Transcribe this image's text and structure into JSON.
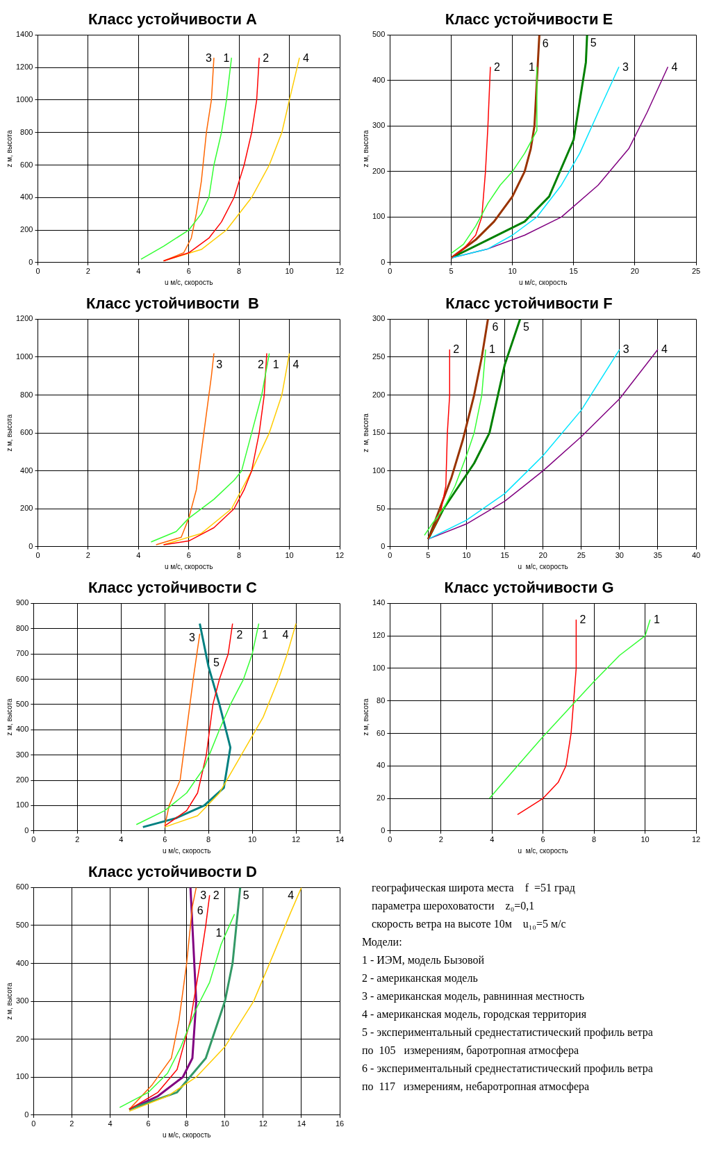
{
  "chart_data": [
    {
      "type": "line",
      "title": "Класс устойчивости A",
      "xlabel": "u м/с, скорость",
      "ylabel": "z м, высота",
      "xlim": [
        0,
        12
      ],
      "xticks": [
        0,
        2,
        4,
        6,
        8,
        10,
        12
      ],
      "ylim": [
        0,
        1400
      ],
      "yticks": [
        0,
        200,
        400,
        600,
        800,
        1000,
        1200,
        1400
      ],
      "grid": true,
      "marker": "none",
      "series": [
        {
          "name": "1",
          "color": "#33ff33",
          "x": [
            4.1,
            5,
            6,
            6.5,
            6.8,
            7,
            7.3,
            7.5,
            7.7
          ],
          "values": [
            20,
            100,
            200,
            300,
            400,
            600,
            800,
            1000,
            1260
          ]
        },
        {
          "name": "2",
          "color": "#ff0000",
          "x": [
            5,
            6,
            6.8,
            7.3,
            7.8,
            8.2,
            8.5,
            8.7,
            8.8
          ],
          "values": [
            10,
            60,
            150,
            250,
            400,
            600,
            800,
            1000,
            1260
          ]
        },
        {
          "name": "3",
          "color": "#ff6600",
          "x": [
            5,
            5.8,
            6.1,
            6.3,
            6.5,
            6.7,
            6.9,
            7
          ],
          "values": [
            10,
            60,
            150,
            300,
            500,
            800,
            1000,
            1260
          ]
        },
        {
          "name": "4",
          "color": "#ffcc00",
          "x": [
            5,
            6.5,
            7.5,
            8.5,
            9.2,
            9.7,
            10,
            10.4
          ],
          "values": [
            10,
            80,
            200,
            400,
            600,
            800,
            1000,
            1260
          ]
        }
      ]
    },
    {
      "type": "line",
      "title": "Класс устойчивости E",
      "xlabel": "u м/с, скорость",
      "ylabel": "z м, высота",
      "xlim": [
        0,
        25
      ],
      "xticks": [
        0,
        5,
        10,
        15,
        20,
        25
      ],
      "ylim": [
        0,
        500
      ],
      "yticks": [
        0,
        100,
        200,
        300,
        400,
        500
      ],
      "grid": true,
      "marker": "none",
      "series": [
        {
          "name": "1",
          "color": "#33ff33",
          "x": [
            5,
            6,
            7,
            8,
            9,
            10,
            11,
            12,
            12
          ],
          "values": [
            20,
            40,
            80,
            130,
            170,
            200,
            240,
            290,
            430
          ]
        },
        {
          "name": "2",
          "color": "#ff0000",
          "x": [
            5,
            6,
            7,
            7.5,
            7.8,
            8,
            8.2
          ],
          "values": [
            10,
            30,
            60,
            100,
            200,
            300,
            430
          ]
        },
        {
          "name": "3",
          "color": "#00e5ff",
          "x": [
            5,
            8,
            10,
            12,
            14,
            15.5,
            17,
            18.7
          ],
          "values": [
            10,
            30,
            60,
            100,
            170,
            240,
            330,
            430
          ]
        },
        {
          "name": "4",
          "color": "#800080",
          "x": [
            5,
            8,
            11,
            14,
            17,
            19.5,
            21,
            22.7
          ],
          "values": [
            10,
            30,
            60,
            100,
            170,
            250,
            330,
            430
          ]
        },
        {
          "name": "5",
          "color": "#008000",
          "x": [
            5,
            8,
            11,
            13,
            15,
            16,
            16.1
          ],
          "values": [
            10,
            50,
            90,
            145,
            270,
            440,
            500
          ]
        },
        {
          "name": "6",
          "color": "#993300",
          "x": [
            5,
            7,
            8.5,
            10,
            11,
            11.5,
            11.8,
            12.2
          ],
          "values": [
            10,
            50,
            90,
            145,
            200,
            250,
            300,
            500
          ]
        }
      ]
    },
    {
      "type": "line",
      "title": "Класс устойчивости  B",
      "xlabel": "u м/с, скорость",
      "ylabel": "z м, высота",
      "xlim": [
        0,
        12
      ],
      "xticks": [
        0,
        2,
        4,
        6,
        8,
        10,
        12
      ],
      "ylim": [
        0,
        1200
      ],
      "yticks": [
        0,
        200,
        400,
        600,
        800,
        1000,
        1200
      ],
      "grid": true,
      "marker": "none",
      "series": [
        {
          "name": "1",
          "color": "#33ff33",
          "x": [
            4.5,
            5.5,
            6,
            7,
            7.8,
            8.1,
            8.5,
            8.9,
            9.2
          ],
          "values": [
            25,
            80,
            150,
            250,
            350,
            400,
            600,
            800,
            1020
          ]
        },
        {
          "name": "2",
          "color": "#ff0000",
          "x": [
            5,
            6,
            7,
            7.8,
            8.2,
            8.5,
            8.8,
            9,
            9.1
          ],
          "values": [
            10,
            30,
            100,
            200,
            300,
            400,
            600,
            800,
            1020
          ]
        },
        {
          "name": "3",
          "color": "#ff6600",
          "x": [
            4.7,
            5.7,
            6,
            6.3,
            6.5,
            6.7,
            6.9,
            7
          ],
          "values": [
            10,
            50,
            150,
            300,
            500,
            700,
            900,
            1020
          ]
        },
        {
          "name": "4",
          "color": "#ffcc00",
          "x": [
            5,
            6.5,
            7.7,
            8.5,
            9.2,
            9.7,
            10
          ],
          "values": [
            10,
            70,
            200,
            400,
            600,
            800,
            1020
          ]
        }
      ]
    },
    {
      "type": "line",
      "title": "Класс устойчивости F",
      "xlabel": "u  м/с, скорость",
      "ylabel": "z  м, высота",
      "xlim": [
        0,
        40
      ],
      "xticks": [
        0,
        5,
        10,
        15,
        20,
        25,
        30,
        35,
        40
      ],
      "ylim": [
        0,
        300
      ],
      "yticks": [
        0,
        50,
        100,
        150,
        200,
        250,
        300
      ],
      "grid": true,
      "marker": "none",
      "series": [
        {
          "name": "1",
          "color": "#33ff33",
          "x": [
            4.5,
            5.5,
            7,
            8.5,
            10,
            11,
            12,
            12.5
          ],
          "values": [
            15,
            30,
            50,
            80,
            120,
            150,
            200,
            260
          ]
        },
        {
          "name": "2",
          "color": "#ff0000",
          "x": [
            5,
            6.5,
            7.3,
            7.5,
            7.8,
            7.8
          ],
          "values": [
            10,
            40,
            80,
            150,
            200,
            260
          ]
        },
        {
          "name": "3",
          "color": "#00e5ff",
          "x": [
            5,
            10,
            15,
            20,
            25,
            30
          ],
          "values": [
            10,
            35,
            70,
            120,
            180,
            260
          ]
        },
        {
          "name": "4",
          "color": "#800080",
          "x": [
            5,
            10,
            15,
            20,
            25,
            30,
            35
          ],
          "values": [
            10,
            30,
            60,
            100,
            145,
            195,
            260
          ]
        },
        {
          "name": "5",
          "color": "#008000",
          "x": [
            5,
            7,
            9,
            11,
            13,
            15,
            17
          ],
          "values": [
            10,
            50,
            80,
            110,
            150,
            240,
            300
          ]
        },
        {
          "name": "6",
          "color": "#993300",
          "x": [
            5,
            6.5,
            8,
            9.5,
            11,
            12,
            12.8
          ],
          "values": [
            10,
            50,
            90,
            140,
            200,
            250,
            300
          ]
        }
      ]
    },
    {
      "type": "line",
      "title": "Класс устойчивости C",
      "xlabel": "u м/с, скорость",
      "ylabel": "z м, высота",
      "xlim": [
        0,
        14
      ],
      "xticks": [
        0,
        2,
        4,
        6,
        8,
        10,
        12,
        14
      ],
      "ylim": [
        0,
        900
      ],
      "yticks": [
        0,
        100,
        200,
        300,
        400,
        500,
        600,
        700,
        800,
        900
      ],
      "grid": true,
      "marker": "none",
      "series": [
        {
          "name": "1",
          "color": "#33ff33",
          "x": [
            4.7,
            6,
            7,
            7.8,
            8.5,
            9,
            9.6,
            10,
            10.3
          ],
          "values": [
            25,
            80,
            150,
            250,
            400,
            500,
            600,
            700,
            820
          ]
        },
        {
          "name": "2",
          "color": "#ff0000",
          "x": [
            6,
            7,
            7.5,
            7.9,
            8.2,
            8.5,
            8.9,
            9.1
          ],
          "values": [
            20,
            80,
            150,
            300,
            500,
            600,
            700,
            820
          ]
        },
        {
          "name": "3",
          "color": "#ff6600",
          "x": [
            6,
            6.2,
            6.7,
            7,
            7.3,
            7.6
          ],
          "values": [
            20,
            100,
            200,
            400,
            600,
            780
          ]
        },
        {
          "name": "4",
          "color": "#ffcc00",
          "x": [
            6,
            7.5,
            8.5,
            9.5,
            10.5,
            11.2,
            11.6,
            12
          ],
          "values": [
            15,
            60,
            150,
            300,
            450,
            600,
            700,
            820
          ]
        },
        {
          "name": "5",
          "color": "#008080",
          "x": [
            5,
            6.5,
            7.8,
            8.7,
            9,
            8.5,
            8,
            7.6
          ],
          "values": [
            15,
            50,
            100,
            170,
            330,
            500,
            650,
            820
          ]
        }
      ]
    },
    {
      "type": "line",
      "title": "Класс устойчивости G",
      "xlabel": "u  м/с, скорость",
      "ylabel": "z м, высота",
      "xlim": [
        0,
        12
      ],
      "xticks": [
        0,
        2,
        4,
        6,
        8,
        10,
        12
      ],
      "ylim": [
        0,
        140
      ],
      "yticks": [
        0,
        20,
        40,
        60,
        80,
        100,
        120,
        140
      ],
      "grid": true,
      "marker": "none",
      "series": [
        {
          "name": "1",
          "color": "#33ff33",
          "x": [
            3.9,
            5,
            6,
            7,
            8,
            9,
            10,
            10.2
          ],
          "values": [
            20,
            40,
            58,
            75,
            92,
            108,
            120,
            130
          ]
        },
        {
          "name": "2",
          "color": "#ff0000",
          "x": [
            5,
            6,
            6.6,
            6.9,
            7.1,
            7.2,
            7.3,
            7.3
          ],
          "values": [
            10,
            20,
            30,
            40,
            60,
            80,
            100,
            130
          ]
        }
      ]
    },
    {
      "type": "line",
      "title": "Класс устойчивости D",
      "xlabel": "u м/с, скорость",
      "ylabel": "z м, высота",
      "xlim": [
        0,
        16
      ],
      "xticks": [
        0,
        2,
        4,
        6,
        8,
        10,
        12,
        14,
        16
      ],
      "ylim": [
        0,
        600
      ],
      "yticks": [
        0,
        100,
        200,
        300,
        400,
        500,
        600
      ],
      "grid": true,
      "marker": "none",
      "series": [
        {
          "name": "1",
          "color": "#33ff33",
          "x": [
            4.5,
            6,
            7,
            7.7,
            8.5,
            9.2,
            9.8,
            10.5
          ],
          "values": [
            20,
            60,
            110,
            180,
            280,
            350,
            450,
            530
          ]
        },
        {
          "name": "2",
          "color": "#ff0000",
          "x": [
            5,
            6.5,
            7.5,
            8.2,
            8.7,
            9,
            9.2
          ],
          "values": [
            15,
            60,
            120,
            250,
            400,
            500,
            580
          ]
        },
        {
          "name": "3",
          "color": "#ff6600",
          "x": [
            5,
            6.2,
            7.2,
            7.6,
            8,
            8.3,
            8.5
          ],
          "values": [
            15,
            80,
            150,
            250,
            400,
            550,
            600
          ]
        },
        {
          "name": "4",
          "color": "#ffcc00",
          "x": [
            5,
            7,
            8.5,
            10,
            11.5,
            12.5,
            13.4,
            14
          ],
          "values": [
            10,
            50,
            100,
            180,
            300,
            420,
            530,
            600
          ]
        },
        {
          "name": "5",
          "color": "#339966",
          "x": [
            5,
            7.5,
            9,
            10,
            10.4,
            10.6,
            10.8
          ],
          "values": [
            15,
            60,
            150,
            300,
            400,
            500,
            600
          ]
        },
        {
          "name": "6",
          "color": "#800080",
          "x": [
            5,
            6.5,
            7.8,
            8.3,
            8.5,
            8.4,
            8.3,
            8.2
          ],
          "values": [
            15,
            50,
            100,
            150,
            300,
            400,
            500,
            600
          ]
        }
      ]
    },
    {
      "type": "other",
      "annotations": [
        "географическая широта места    f  =51 град",
        "параметра шероховатости    z₀=0,1",
        "скорость ветра на высоте 10м    u₁₀=5 м/с",
        "Модели:",
        "1 - ИЭМ, модель Бызовой",
        "2 - американская модель",
        "3 - американская модель, равнинная местность",
        "4 - американская модель, городская территория",
        "5 - экспериментальный среднестатистический профиль ветра",
        "по  105   измерениям, баротропная атмосфера",
        "6 - экспериментальный среднестатистический профиль ветра",
        "по  117   измерениям, небаротропная атмосфера"
      ]
    }
  ]
}
